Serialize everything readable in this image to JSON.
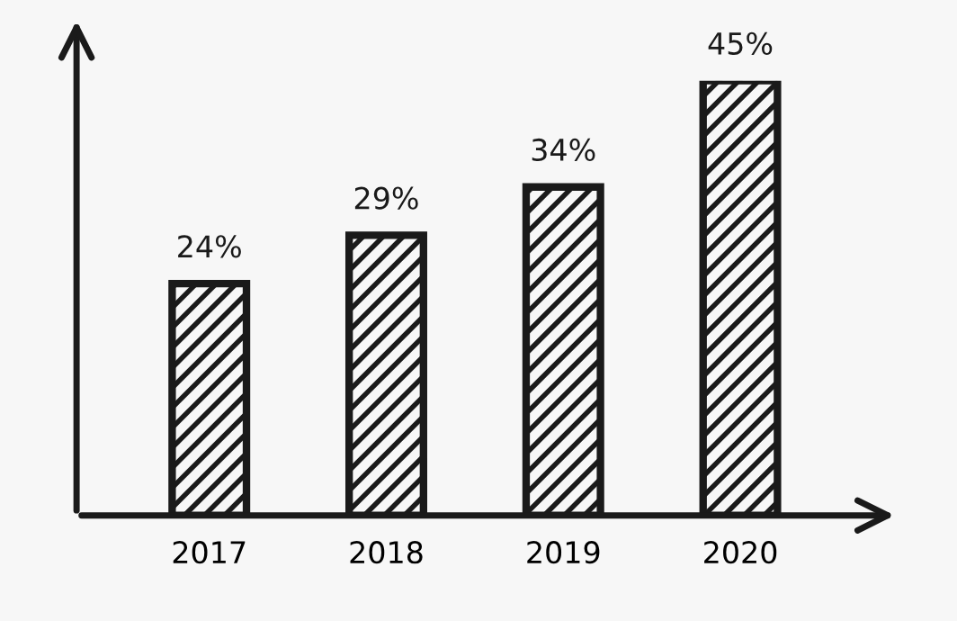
{
  "chart_data": {
    "type": "bar",
    "categories": [
      "2017",
      "2018",
      "2019",
      "2020"
    ],
    "values": [
      24,
      29,
      34,
      45
    ],
    "value_labels": [
      "24%",
      "29%",
      "34%",
      "45%"
    ],
    "color": "#1a1a1a",
    "grid": false
  }
}
